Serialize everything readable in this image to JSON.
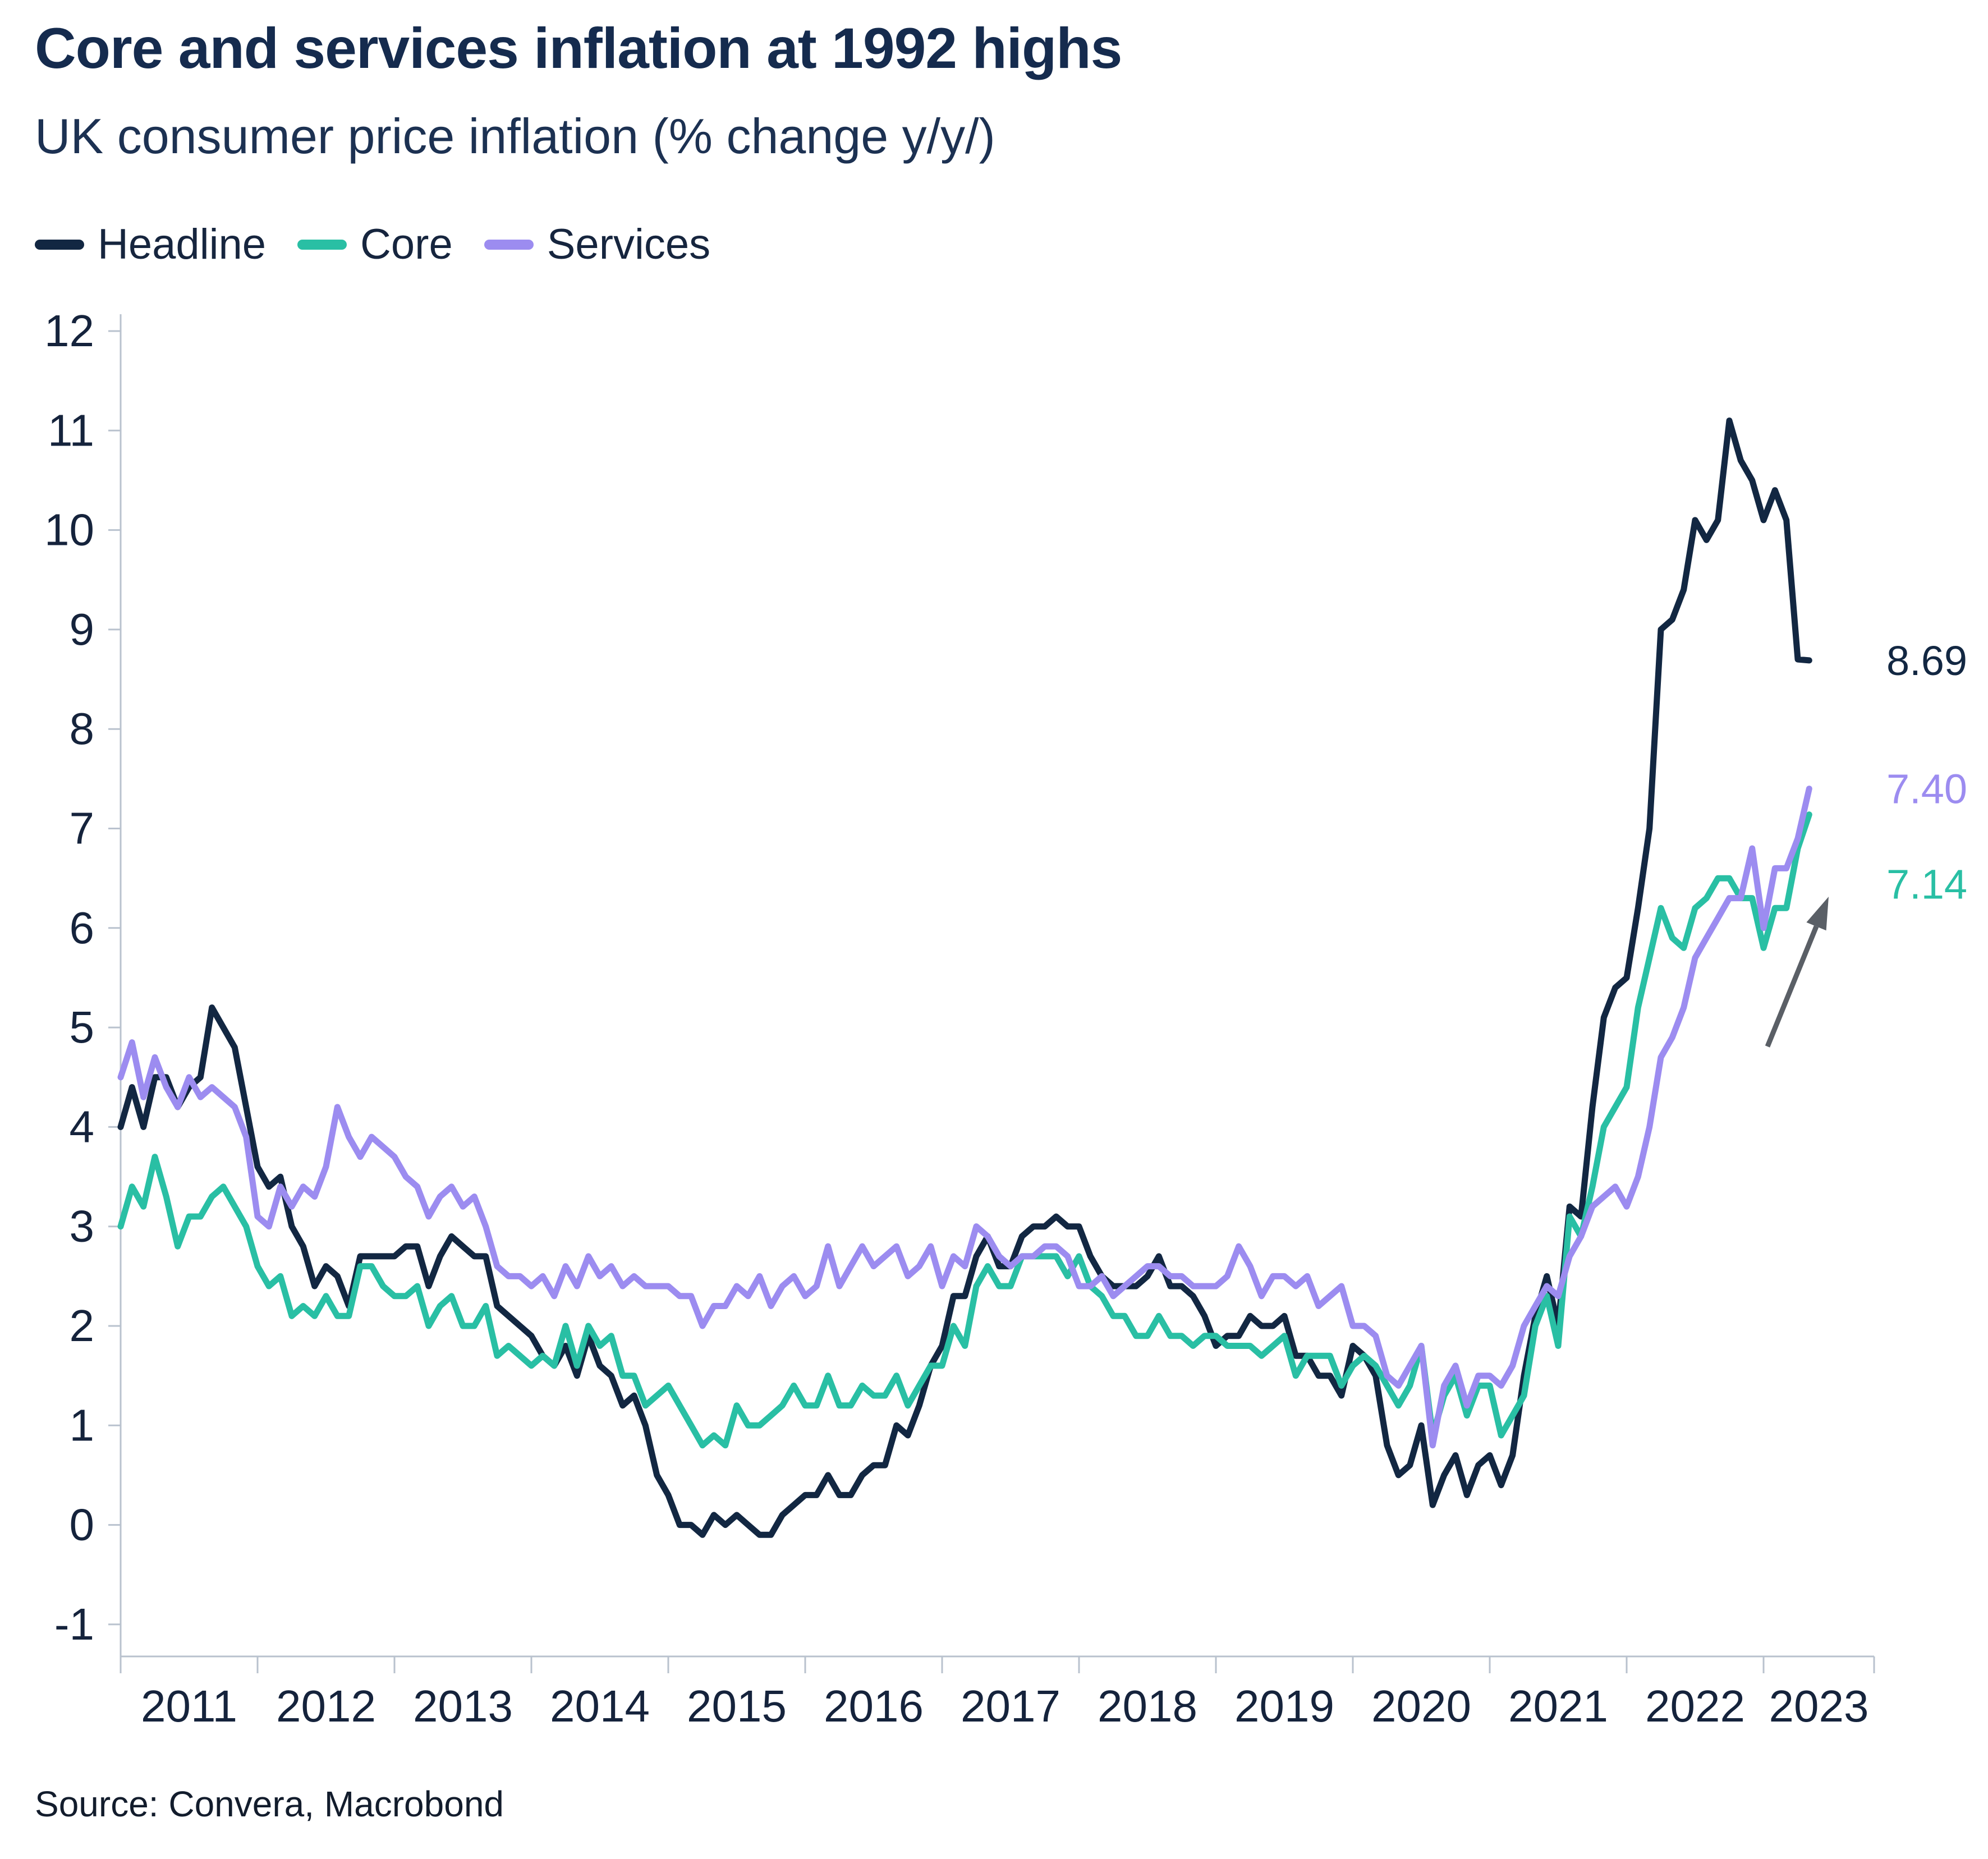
{
  "footer": {
    "source": "Source: Convera, Macrobond"
  },
  "annotations": {
    "trend_arrow": {
      "direction": "up-right",
      "color": "#5a5f66"
    }
  },
  "chart_data": {
    "type": "line",
    "title": "Core and services inflation at 1992 highs",
    "subtitle": "UK consumer price inflation (% change y/y/)",
    "xlabel": "",
    "ylabel": "",
    "ylim": [
      -1,
      12
    ],
    "yticks": [
      12,
      11,
      10,
      9,
      8,
      7,
      6,
      5,
      4,
      3,
      2,
      1,
      0,
      -1
    ],
    "x_labels": [
      "2011",
      "2012",
      "2013",
      "2014",
      "2015",
      "2016",
      "2017",
      "2018",
      "2019",
      "2020",
      "2021",
      "2022",
      "2023"
    ],
    "x_start": "2011-01",
    "x_end": "2023-05",
    "frequency": "monthly",
    "grid": false,
    "legend_position": "top-left",
    "series": [
      {
        "name": "Headline",
        "color": "#122742",
        "end_label": "8.69",
        "values": [
          4.0,
          4.4,
          4.0,
          4.5,
          4.5,
          4.2,
          4.4,
          4.5,
          5.2,
          5.0,
          4.8,
          4.2,
          3.6,
          3.4,
          3.5,
          3.0,
          2.8,
          2.4,
          2.6,
          2.5,
          2.2,
          2.7,
          2.7,
          2.7,
          2.7,
          2.8,
          2.8,
          2.4,
          2.7,
          2.9,
          2.8,
          2.7,
          2.7,
          2.2,
          2.1,
          2.0,
          1.9,
          1.7,
          1.6,
          1.8,
          1.5,
          1.9,
          1.6,
          1.5,
          1.2,
          1.3,
          1.0,
          0.5,
          0.3,
          0.0,
          0.0,
          -0.1,
          0.1,
          0.0,
          0.1,
          0.0,
          -0.1,
          -0.1,
          0.1,
          0.2,
          0.3,
          0.3,
          0.5,
          0.3,
          0.3,
          0.5,
          0.6,
          0.6,
          1.0,
          0.9,
          1.2,
          1.6,
          1.8,
          2.3,
          2.3,
          2.7,
          2.9,
          2.6,
          2.6,
          2.9,
          3.0,
          3.0,
          3.1,
          3.0,
          3.0,
          2.7,
          2.5,
          2.4,
          2.4,
          2.4,
          2.5,
          2.7,
          2.4,
          2.4,
          2.3,
          2.1,
          1.8,
          1.9,
          1.9,
          2.1,
          2.0,
          2.0,
          2.1,
          1.7,
          1.7,
          1.5,
          1.5,
          1.3,
          1.8,
          1.7,
          1.5,
          0.8,
          0.5,
          0.6,
          1.0,
          0.2,
          0.5,
          0.7,
          0.3,
          0.6,
          0.7,
          0.4,
          0.7,
          1.5,
          2.1,
          2.5,
          2.0,
          3.2,
          3.1,
          4.2,
          5.1,
          5.4,
          5.5,
          6.2,
          7.0,
          9.0,
          9.1,
          9.4,
          10.1,
          9.9,
          10.1,
          11.1,
          10.7,
          10.5,
          10.1,
          10.4,
          10.1,
          8.7,
          8.69
        ]
      },
      {
        "name": "Core",
        "color": "#29bfa4",
        "end_label": "7.14",
        "values": [
          3.0,
          3.4,
          3.2,
          3.7,
          3.3,
          2.8,
          3.1,
          3.1,
          3.3,
          3.4,
          3.2,
          3.0,
          2.6,
          2.4,
          2.5,
          2.1,
          2.2,
          2.1,
          2.3,
          2.1,
          2.1,
          2.6,
          2.6,
          2.4,
          2.3,
          2.3,
          2.4,
          2.0,
          2.2,
          2.3,
          2.0,
          2.0,
          2.2,
          1.7,
          1.8,
          1.7,
          1.6,
          1.7,
          1.6,
          2.0,
          1.6,
          2.0,
          1.8,
          1.9,
          1.5,
          1.5,
          1.2,
          1.3,
          1.4,
          1.2,
          1.0,
          0.8,
          0.9,
          0.8,
          1.2,
          1.0,
          1.0,
          1.1,
          1.2,
          1.4,
          1.2,
          1.2,
          1.5,
          1.2,
          1.2,
          1.4,
          1.3,
          1.3,
          1.5,
          1.2,
          1.4,
          1.6,
          1.6,
          2.0,
          1.8,
          2.4,
          2.6,
          2.4,
          2.4,
          2.7,
          2.7,
          2.7,
          2.7,
          2.5,
          2.7,
          2.4,
          2.3,
          2.1,
          2.1,
          1.9,
          1.9,
          2.1,
          1.9,
          1.9,
          1.8,
          1.9,
          1.9,
          1.8,
          1.8,
          1.8,
          1.7,
          1.8,
          1.9,
          1.5,
          1.7,
          1.7,
          1.7,
          1.4,
          1.6,
          1.7,
          1.6,
          1.4,
          1.2,
          1.4,
          1.8,
          0.9,
          1.3,
          1.5,
          1.1,
          1.4,
          1.4,
          0.9,
          1.1,
          1.3,
          2.0,
          2.3,
          1.8,
          3.1,
          2.9,
          3.4,
          4.0,
          4.2,
          4.4,
          5.2,
          5.7,
          6.2,
          5.9,
          5.8,
          6.2,
          6.3,
          6.5,
          6.5,
          6.3,
          6.3,
          5.8,
          6.2,
          6.2,
          6.8,
          7.14
        ]
      },
      {
        "name": "Services",
        "color": "#9c8cf0",
        "end_label": "7.40",
        "values": [
          4.5,
          4.85,
          4.3,
          4.7,
          4.4,
          4.2,
          4.5,
          4.3,
          4.4,
          4.3,
          4.2,
          3.9,
          3.1,
          3.0,
          3.4,
          3.2,
          3.4,
          3.3,
          3.6,
          4.2,
          3.9,
          3.7,
          3.9,
          3.8,
          3.7,
          3.5,
          3.4,
          3.1,
          3.3,
          3.4,
          3.2,
          3.3,
          3.0,
          2.6,
          2.5,
          2.5,
          2.4,
          2.5,
          2.3,
          2.6,
          2.4,
          2.7,
          2.5,
          2.6,
          2.4,
          2.5,
          2.4,
          2.4,
          2.4,
          2.3,
          2.3,
          2.0,
          2.2,
          2.2,
          2.4,
          2.3,
          2.5,
          2.2,
          2.4,
          2.5,
          2.3,
          2.4,
          2.8,
          2.4,
          2.6,
          2.8,
          2.6,
          2.7,
          2.8,
          2.5,
          2.6,
          2.8,
          2.4,
          2.7,
          2.6,
          3.0,
          2.9,
          2.7,
          2.6,
          2.7,
          2.7,
          2.8,
          2.8,
          2.7,
          2.4,
          2.4,
          2.5,
          2.3,
          2.4,
          2.5,
          2.6,
          2.6,
          2.5,
          2.5,
          2.4,
          2.4,
          2.4,
          2.5,
          2.8,
          2.6,
          2.3,
          2.5,
          2.5,
          2.4,
          2.5,
          2.2,
          2.3,
          2.4,
          2.0,
          2.0,
          1.9,
          1.5,
          1.4,
          1.6,
          1.8,
          0.8,
          1.4,
          1.6,
          1.2,
          1.5,
          1.5,
          1.4,
          1.6,
          2.0,
          2.2,
          2.4,
          2.3,
          2.7,
          2.9,
          3.2,
          3.3,
          3.4,
          3.2,
          3.5,
          4.0,
          4.7,
          4.9,
          5.2,
          5.7,
          5.9,
          6.1,
          6.3,
          6.3,
          6.8,
          6.0,
          6.6,
          6.6,
          6.9,
          7.4
        ]
      }
    ]
  }
}
